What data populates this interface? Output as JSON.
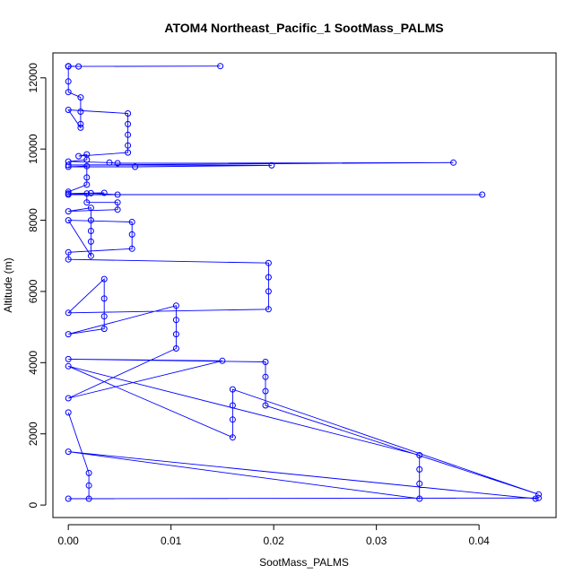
{
  "chart_data": {
    "type": "line",
    "title": "ATOM4 Northeast_Pacific_1 SootMass_PALMS",
    "xlabel": "SootMass_PALMS",
    "ylabel": "Altitude (m)",
    "xlim": [
      -0.0015,
      0.0475
    ],
    "ylim": [
      -350,
      12700
    ],
    "x_ticks": [
      0,
      0.01,
      0.02,
      0.03,
      0.04
    ],
    "x_tick_labels": [
      "0.00",
      "0.01",
      "0.02",
      "0.03",
      "0.04"
    ],
    "y_ticks": [
      0,
      2000,
      4000,
      6000,
      8000,
      10000,
      12000
    ],
    "y_tick_labels": [
      "0",
      "2000",
      "4000",
      "6000",
      "8000",
      "10000",
      "12000"
    ],
    "grid": false,
    "legend": "none",
    "series": [
      {
        "color": "#0000ff",
        "marker": "open-circle",
        "points": [
          [
            0.0,
            12330
          ],
          [
            0.001,
            12320
          ],
          [
            0.0148,
            12330
          ],
          [
            0.0,
            12320
          ],
          [
            0.0,
            11900
          ],
          [
            0.0,
            11600
          ],
          [
            0.0012,
            11450
          ],
          [
            0.0012,
            11050
          ],
          [
            0.0012,
            10700
          ],
          [
            0.0012,
            10600
          ],
          [
            0.0,
            11100
          ],
          [
            0.0058,
            11000
          ],
          [
            0.0058,
            10700
          ],
          [
            0.0058,
            10400
          ],
          [
            0.0058,
            10100
          ],
          [
            0.0058,
            9900
          ],
          [
            0.001,
            9800
          ],
          [
            0.0018,
            9850
          ],
          [
            0.0018,
            9700
          ],
          [
            0.0,
            9650
          ],
          [
            0.004,
            9620
          ],
          [
            0.0048,
            9600
          ],
          [
            0.0375,
            9620
          ],
          [
            0.0,
            9550
          ],
          [
            0.0198,
            9540
          ],
          [
            0.0065,
            9500
          ],
          [
            0.0,
            9500
          ],
          [
            0.0018,
            9520
          ],
          [
            0.0018,
            9200
          ],
          [
            0.0018,
            9000
          ],
          [
            0.0,
            8800
          ],
          [
            0.0,
            8750
          ],
          [
            0.0035,
            8770
          ],
          [
            0.0022,
            8760
          ],
          [
            0.0048,
            8720
          ],
          [
            0.0403,
            8720
          ],
          [
            0.0,
            8720
          ],
          [
            0.0018,
            8750
          ],
          [
            0.0018,
            8500
          ],
          [
            0.0048,
            8500
          ],
          [
            0.0048,
            8300
          ],
          [
            0.0,
            8250
          ],
          [
            0.0022,
            8350
          ],
          [
            0.0022,
            8000
          ],
          [
            0.0022,
            7700
          ],
          [
            0.0022,
            7400
          ],
          [
            0.0022,
            7000
          ],
          [
            0.0,
            8000
          ],
          [
            0.0062,
            7950
          ],
          [
            0.0062,
            7600
          ],
          [
            0.0062,
            7200
          ],
          [
            0.0,
            7100
          ],
          [
            0.0,
            6900
          ],
          [
            0.0195,
            6800
          ],
          [
            0.0195,
            6400
          ],
          [
            0.0195,
            6000
          ],
          [
            0.0195,
            5500
          ],
          [
            0.0,
            5400
          ],
          [
            0.0035,
            6350
          ],
          [
            0.0035,
            5800
          ],
          [
            0.0035,
            5300
          ],
          [
            0.0035,
            4950
          ],
          [
            0.0,
            4800
          ],
          [
            0.0105,
            5600
          ],
          [
            0.0105,
            5200
          ],
          [
            0.0105,
            4800
          ],
          [
            0.0105,
            4400
          ],
          [
            0.0,
            3000
          ],
          [
            0.015,
            4050
          ],
          [
            0.0,
            4100
          ],
          [
            0.0192,
            4020
          ],
          [
            0.0192,
            3600
          ],
          [
            0.0192,
            3200
          ],
          [
            0.0192,
            2800
          ],
          [
            0.0458,
            300
          ],
          [
            0.016,
            3250
          ],
          [
            0.016,
            2800
          ],
          [
            0.016,
            2400
          ],
          [
            0.016,
            1900
          ],
          [
            0.0,
            3900
          ],
          [
            0.0342,
            1400
          ],
          [
            0.0342,
            1000
          ],
          [
            0.0342,
            600
          ],
          [
            0.0342,
            180
          ],
          [
            0.0,
            1500
          ],
          [
            0.0455,
            180
          ],
          [
            0.0458,
            200
          ],
          [
            0.0,
            180
          ],
          [
            0.002,
            180
          ],
          [
            0.002,
            550
          ],
          [
            0.002,
            900
          ],
          [
            0.0,
            2600
          ]
        ]
      }
    ]
  }
}
